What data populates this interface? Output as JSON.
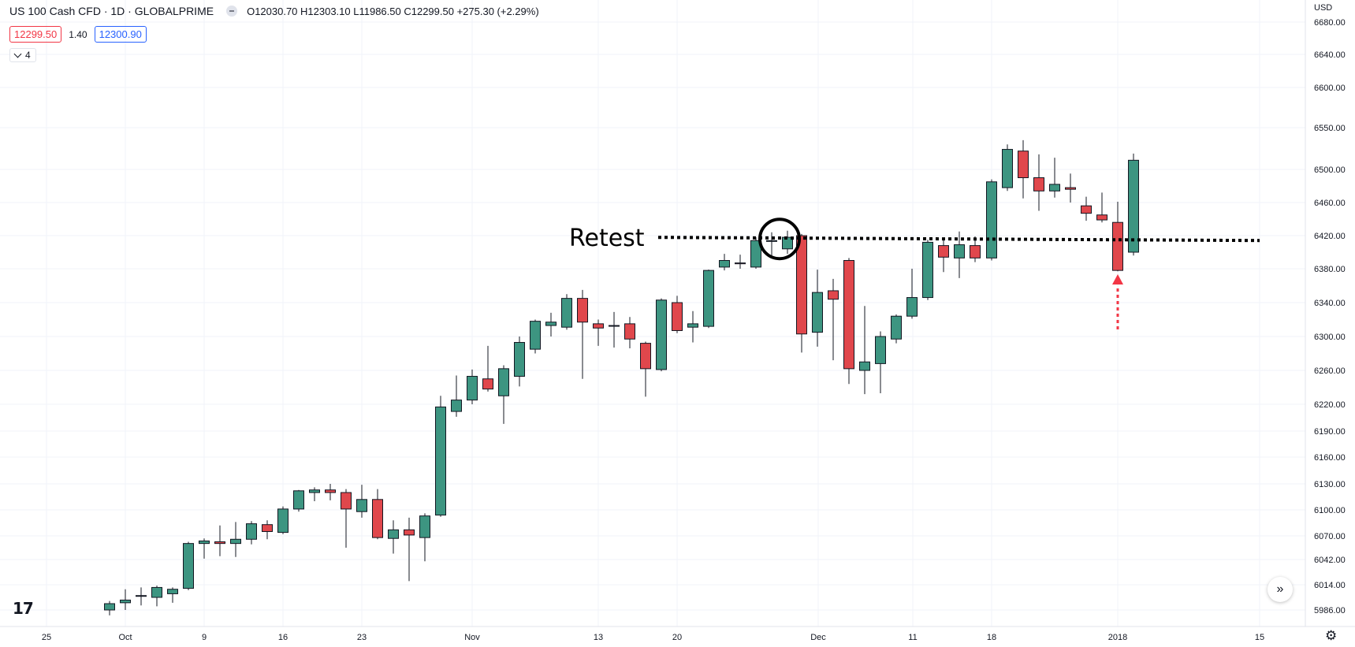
{
  "header": {
    "title": "US 100 Cash CFD · 1D · GLOBALPRIME",
    "ohlc": "O12030.70  H12303.10  L11986.50  C12299.50  +275.30 (+2.29%)",
    "bid": "12299.50",
    "spread": "1.40",
    "ask": "12300.90",
    "indicator_count": "4",
    "currency": "USD"
  },
  "colors": {
    "up": "#3d9581",
    "down": "#e0474c",
    "grid": "#f0f3fa",
    "annotation": "#000000",
    "arrow": "#f23645"
  },
  "icons": {
    "collapse": "minus-icon",
    "indicators": "chevron-down-icon",
    "scroll_to_realtime": "double-chevron-right-icon",
    "settings": "gear-icon",
    "logo": "tradingview-logo"
  },
  "chart_data": {
    "type": "candlestick",
    "y_tick_labels": [
      "6680.00",
      "6640.00",
      "6600.00",
      "6550.00",
      "6500.00",
      "6460.00",
      "6420.00",
      "6380.00",
      "6340.00",
      "6300.00",
      "6260.00",
      "6220.00",
      "6190.00",
      "6160.00",
      "6130.00",
      "6100.00",
      "6070.00",
      "6042.00",
      "6014.00",
      "5986.00"
    ],
    "x_tick_labels": [
      "25",
      "Oct",
      "9",
      "16",
      "23",
      "Nov",
      "13",
      "20",
      "Dec",
      "11",
      "18",
      "2018",
      "15"
    ],
    "candles": [
      {
        "o": 5986,
        "c": 5993,
        "h": 5996,
        "l": 5980
      },
      {
        "o": 5994,
        "c": 5997,
        "h": 6009,
        "l": 5986
      },
      {
        "o": 6002,
        "c": 6002,
        "h": 6011,
        "l": 5991
      },
      {
        "o": 6000,
        "c": 6011,
        "h": 6013,
        "l": 5990
      },
      {
        "o": 6004,
        "c": 6009,
        "h": 6011,
        "l": 5994
      },
      {
        "o": 6010,
        "c": 6061,
        "h": 6063,
        "l": 6008
      },
      {
        "o": 6061,
        "c": 6064,
        "h": 6067,
        "l": 6043
      },
      {
        "o": 6063,
        "c": 6061,
        "h": 6082,
        "l": 6046
      },
      {
        "o": 6061,
        "c": 6066,
        "h": 6086,
        "l": 6045
      },
      {
        "o": 6066,
        "c": 6084,
        "h": 6087,
        "l": 6060
      },
      {
        "o": 6083,
        "c": 6075,
        "h": 6088,
        "l": 6066
      },
      {
        "o": 6074,
        "c": 6101,
        "h": 6104,
        "l": 6072
      },
      {
        "o": 6101,
        "c": 6122,
        "h": 6123,
        "l": 6098
      },
      {
        "o": 6120,
        "c": 6123,
        "h": 6126,
        "l": 6110
      },
      {
        "o": 6123,
        "c": 6120,
        "h": 6130,
        "l": 6111
      },
      {
        "o": 6120,
        "c": 6101,
        "h": 6124,
        "l": 6056
      },
      {
        "o": 6098,
        "c": 6112,
        "h": 6129,
        "l": 6091
      },
      {
        "o": 6112,
        "c": 6068,
        "h": 6124,
        "l": 6066
      },
      {
        "o": 6067,
        "c": 6077,
        "h": 6088,
        "l": 6049
      },
      {
        "o": 6077,
        "c": 6071,
        "h": 6091,
        "l": 6018
      },
      {
        "o": 6068,
        "c": 6093,
        "h": 6096,
        "l": 6040
      },
      {
        "o": 6094,
        "c": 6217,
        "h": 6230,
        "l": 6092
      },
      {
        "o": 6212,
        "c": 6225,
        "h": 6254,
        "l": 6206
      },
      {
        "o": 6225,
        "c": 6253,
        "h": 6261,
        "l": 6220
      },
      {
        "o": 6250,
        "c": 6238,
        "h": 6289,
        "l": 6235
      },
      {
        "o": 6230,
        "c": 6262,
        "h": 6266,
        "l": 6198
      },
      {
        "o": 6253,
        "c": 6293,
        "h": 6300,
        "l": 6241
      },
      {
        "o": 6285,
        "c": 6318,
        "h": 6320,
        "l": 6280
      },
      {
        "o": 6313,
        "c": 6317,
        "h": 6328,
        "l": 6300
      },
      {
        "o": 6311,
        "c": 6345,
        "h": 6350,
        "l": 6308
      },
      {
        "o": 6345,
        "c": 6317,
        "h": 6355,
        "l": 6250
      },
      {
        "o": 6315,
        "c": 6310,
        "h": 6320,
        "l": 6289
      },
      {
        "o": 6313,
        "c": 6313,
        "h": 6329,
        "l": 6287
      },
      {
        "o": 6315,
        "c": 6297,
        "h": 6323,
        "l": 6286
      },
      {
        "o": 6292,
        "c": 6262,
        "h": 6294,
        "l": 6229
      },
      {
        "o": 6261,
        "c": 6343,
        "h": 6345,
        "l": 6259
      },
      {
        "o": 6340,
        "c": 6307,
        "h": 6348,
        "l": 6304
      },
      {
        "o": 6311,
        "c": 6315,
        "h": 6330,
        "l": 6293
      },
      {
        "o": 6312,
        "c": 6378,
        "h": 6379,
        "l": 6310
      },
      {
        "o": 6382,
        "c": 6390,
        "h": 6398,
        "l": 6378
      },
      {
        "o": 6387,
        "c": 6386,
        "h": 6397,
        "l": 6380
      },
      {
        "o": 6382,
        "c": 6414,
        "h": 6418,
        "l": 6380
      },
      {
        "o": 6413,
        "c": 6414,
        "h": 6424,
        "l": 6396
      },
      {
        "o": 6404,
        "c": 6418,
        "h": 6426,
        "l": 6398
      },
      {
        "o": 6420,
        "c": 6303,
        "h": 6422,
        "l": 6281
      },
      {
        "o": 6305,
        "c": 6352,
        "h": 6379,
        "l": 6288
      },
      {
        "o": 6354,
        "c": 6344,
        "h": 6368,
        "l": 6272
      },
      {
        "o": 6390,
        "c": 6262,
        "h": 6393,
        "l": 6244
      },
      {
        "o": 6260,
        "c": 6270,
        "h": 6336,
        "l": 6232
      },
      {
        "o": 6268,
        "c": 6300,
        "h": 6306,
        "l": 6233
      },
      {
        "o": 6297,
        "c": 6324,
        "h": 6326,
        "l": 6292
      },
      {
        "o": 6324,
        "c": 6346,
        "h": 6380,
        "l": 6321
      },
      {
        "o": 6346,
        "c": 6412,
        "h": 6415,
        "l": 6343
      },
      {
        "o": 6408,
        "c": 6394,
        "h": 6417,
        "l": 6376
      },
      {
        "o": 6393,
        "c": 6409,
        "h": 6425,
        "l": 6369
      },
      {
        "o": 6408,
        "c": 6393,
        "h": 6419,
        "l": 6388
      },
      {
        "o": 6393,
        "c": 6485,
        "h": 6488,
        "l": 6390
      },
      {
        "o": 6478,
        "c": 6524,
        "h": 6530,
        "l": 6474
      },
      {
        "o": 6522,
        "c": 6490,
        "h": 6535,
        "l": 6465
      },
      {
        "o": 6490,
        "c": 6474,
        "h": 6518,
        "l": 6450
      },
      {
        "o": 6474,
        "c": 6482,
        "h": 6514,
        "l": 6466
      },
      {
        "o": 6478,
        "c": 6476,
        "h": 6495,
        "l": 6460
      },
      {
        "o": 6456,
        "c": 6447,
        "h": 6467,
        "l": 6438
      },
      {
        "o": 6445,
        "c": 6439,
        "h": 6472,
        "l": 6436
      },
      {
        "o": 6436,
        "c": 6378,
        "h": 6461,
        "l": 6377
      },
      {
        "o": 6400,
        "c": 6511,
        "h": 6519,
        "l": 6396
      }
    ],
    "annotations": {
      "label": "Retest",
      "level": 6416
    }
  }
}
